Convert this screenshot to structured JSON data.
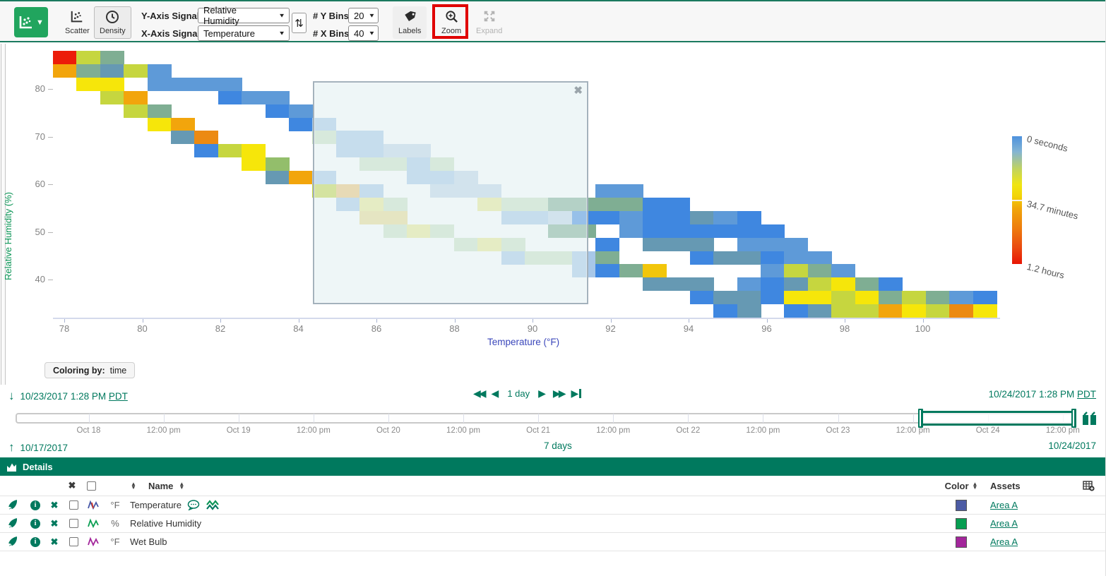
{
  "toolbar": {
    "scatter_label": "Scatter",
    "density_label": "Density",
    "y_axis_label": "Y-Axis Signal:",
    "y_axis_value": "Relative Humidity",
    "x_axis_label": "X-Axis Signal:",
    "x_axis_value": "Temperature",
    "y_bins_label": "# Y Bins:",
    "y_bins_value": "20",
    "x_bins_label": "# X Bins:",
    "x_bins_value": "40",
    "labels_label": "Labels",
    "zoom_label": "Zoom",
    "expand_label": "Expand",
    "highlight_color": "#e00000"
  },
  "chart": {
    "y_axis_title": "Relative Humidity (%)",
    "x_axis_title": "Temperature (°F)",
    "y_ticks": [
      "80",
      "70",
      "60",
      "50",
      "40"
    ],
    "x_ticks": [
      "78",
      "80",
      "82",
      "84",
      "86",
      "88",
      "90",
      "92",
      "94",
      "96",
      "98",
      "100"
    ],
    "legend": {
      "top": "0 seconds",
      "mid": "34.7 minutes",
      "bottom": "1.2 hours"
    },
    "coloring_chip": {
      "label": "Coloring by:",
      "value": "time"
    },
    "palette": {
      "red": "#ec1c09",
      "orange": "#f2a50c",
      "darkOrange": "#ec8a12",
      "gold": "#f2c60b",
      "yellow": "#f6e60a",
      "paleYellow": "#ecE98e",
      "yellowGreen": "#c6d63f",
      "green": "#93be6b",
      "sage": "#7fae93",
      "tealBlue": "#6699b3",
      "blue": "#3f87e0",
      "midBlue": "#5e9ad8",
      "lightBlue": "#a7c7e8",
      "paleBlue": "#c2d6e8",
      "paleGreen": "#cde2c4",
      "mutedOrange": "#f0c070",
      "mutedYellow": "#ecd98a"
    },
    "cells": [
      [
        0,
        0,
        "red"
      ],
      [
        1,
        0,
        "yellowGreen"
      ],
      [
        2,
        0,
        "sage"
      ],
      [
        0,
        1,
        "orange"
      ],
      [
        1,
        1,
        "sage"
      ],
      [
        2,
        1,
        "tealBlue"
      ],
      [
        3,
        1,
        "yellowGreen"
      ],
      [
        4,
        1,
        "midBlue"
      ],
      [
        1,
        2,
        "yellow"
      ],
      [
        2,
        2,
        "yellow"
      ],
      [
        4,
        2,
        "midBlue"
      ],
      [
        5,
        2,
        "midBlue"
      ],
      [
        6,
        2,
        "midBlue"
      ],
      [
        7,
        2,
        "midBlue"
      ],
      [
        2,
        3,
        "yellowGreen"
      ],
      [
        3,
        3,
        "orange"
      ],
      [
        7,
        3,
        "blue"
      ],
      [
        8,
        3,
        "midBlue"
      ],
      [
        9,
        3,
        "midBlue"
      ],
      [
        3,
        4,
        "yellowGreen"
      ],
      [
        4,
        4,
        "sage"
      ],
      [
        9,
        4,
        "blue"
      ],
      [
        10,
        4,
        "midBlue"
      ],
      [
        4,
        5,
        "yellow"
      ],
      [
        5,
        5,
        "orange"
      ],
      [
        10,
        5,
        "blue"
      ],
      [
        11,
        5,
        "lightBlue"
      ],
      [
        5,
        6,
        "tealBlue"
      ],
      [
        6,
        6,
        "darkOrange"
      ],
      [
        11,
        6,
        "paleGreen"
      ],
      [
        12,
        6,
        "lightBlue"
      ],
      [
        13,
        6,
        "lightBlue"
      ],
      [
        6,
        7,
        "blue"
      ],
      [
        7,
        7,
        "yellowGreen"
      ],
      [
        8,
        7,
        "yellow"
      ],
      [
        12,
        7,
        "lightBlue"
      ],
      [
        13,
        7,
        "lightBlue"
      ],
      [
        14,
        7,
        "paleBlue"
      ],
      [
        15,
        7,
        "paleBlue"
      ],
      [
        8,
        8,
        "yellow"
      ],
      [
        9,
        8,
        "green"
      ],
      [
        13,
        8,
        "paleGreen"
      ],
      [
        14,
        8,
        "paleGreen"
      ],
      [
        15,
        8,
        "lightBlue"
      ],
      [
        16,
        8,
        "paleGreen"
      ],
      [
        9,
        9,
        "tealBlue"
      ],
      [
        10,
        9,
        "orange"
      ],
      [
        11,
        9,
        "lightBlue"
      ],
      [
        15,
        9,
        "lightBlue"
      ],
      [
        16,
        9,
        "lightBlue"
      ],
      [
        17,
        9,
        "paleBlue"
      ],
      [
        11,
        10,
        "yellowGreen"
      ],
      [
        12,
        10,
        "mutedOrange"
      ],
      [
        13,
        10,
        "lightBlue"
      ],
      [
        16,
        10,
        "paleBlue"
      ],
      [
        17,
        10,
        "paleBlue"
      ],
      [
        18,
        10,
        "paleBlue"
      ],
      [
        23,
        10,
        "midBlue"
      ],
      [
        24,
        10,
        "midBlue"
      ],
      [
        12,
        11,
        "lightBlue"
      ],
      [
        13,
        11,
        "paleYellow"
      ],
      [
        14,
        11,
        "paleGreen"
      ],
      [
        18,
        11,
        "paleYellow"
      ],
      [
        19,
        11,
        "paleGreen"
      ],
      [
        20,
        11,
        "paleGreen"
      ],
      [
        21,
        11,
        "sage"
      ],
      [
        22,
        11,
        "sage"
      ],
      [
        23,
        11,
        "sage"
      ],
      [
        24,
        11,
        "sage"
      ],
      [
        25,
        11,
        "blue"
      ],
      [
        26,
        11,
        "blue"
      ],
      [
        13,
        12,
        "mutedYellow"
      ],
      [
        14,
        12,
        "mutedYellow"
      ],
      [
        19,
        12,
        "lightBlue"
      ],
      [
        20,
        12,
        "lightBlue"
      ],
      [
        21,
        12,
        "paleBlue"
      ],
      [
        22,
        12,
        "blue"
      ],
      [
        23,
        12,
        "blue"
      ],
      [
        24,
        12,
        "midBlue"
      ],
      [
        25,
        12,
        "blue"
      ],
      [
        26,
        12,
        "blue"
      ],
      [
        27,
        12,
        "tealBlue"
      ],
      [
        28,
        12,
        "midBlue"
      ],
      [
        29,
        12,
        "blue"
      ],
      [
        14,
        13,
        "paleGreen"
      ],
      [
        15,
        13,
        "paleYellow"
      ],
      [
        16,
        13,
        "paleGreen"
      ],
      [
        21,
        13,
        "sage"
      ],
      [
        22,
        13,
        "sage"
      ],
      [
        24,
        13,
        "midBlue"
      ],
      [
        25,
        13,
        "blue"
      ],
      [
        26,
        13,
        "blue"
      ],
      [
        27,
        13,
        "blue"
      ],
      [
        28,
        13,
        "blue"
      ],
      [
        29,
        13,
        "blue"
      ],
      [
        30,
        13,
        "blue"
      ],
      [
        17,
        14,
        "paleGreen"
      ],
      [
        18,
        14,
        "paleYellow"
      ],
      [
        19,
        14,
        "paleGreen"
      ],
      [
        23,
        14,
        "blue"
      ],
      [
        25,
        14,
        "tealBlue"
      ],
      [
        26,
        14,
        "tealBlue"
      ],
      [
        27,
        14,
        "tealBlue"
      ],
      [
        29,
        14,
        "midBlue"
      ],
      [
        30,
        14,
        "midBlue"
      ],
      [
        31,
        14,
        "midBlue"
      ],
      [
        19,
        15,
        "lightBlue"
      ],
      [
        20,
        15,
        "paleGreen"
      ],
      [
        21,
        15,
        "paleGreen"
      ],
      [
        22,
        15,
        "lightBlue"
      ],
      [
        23,
        15,
        "sage"
      ],
      [
        27,
        15,
        "blue"
      ],
      [
        28,
        15,
        "tealBlue"
      ],
      [
        29,
        15,
        "tealBlue"
      ],
      [
        30,
        15,
        "blue"
      ],
      [
        31,
        15,
        "midBlue"
      ],
      [
        32,
        15,
        "midBlue"
      ],
      [
        22,
        16,
        "lightBlue"
      ],
      [
        23,
        16,
        "blue"
      ],
      [
        24,
        16,
        "sage"
      ],
      [
        25,
        16,
        "gold"
      ],
      [
        30,
        16,
        "midBlue"
      ],
      [
        31,
        16,
        "yellowGreen"
      ],
      [
        32,
        16,
        "sage"
      ],
      [
        33,
        16,
        "midBlue"
      ],
      [
        25,
        17,
        "tealBlue"
      ],
      [
        26,
        17,
        "tealBlue"
      ],
      [
        27,
        17,
        "tealBlue"
      ],
      [
        29,
        17,
        "midBlue"
      ],
      [
        30,
        17,
        "blue"
      ],
      [
        31,
        17,
        "tealBlue"
      ],
      [
        32,
        17,
        "yellowGreen"
      ],
      [
        33,
        17,
        "yellow"
      ],
      [
        34,
        17,
        "sage"
      ],
      [
        35,
        17,
        "blue"
      ],
      [
        27,
        18,
        "blue"
      ],
      [
        28,
        18,
        "tealBlue"
      ],
      [
        29,
        18,
        "tealBlue"
      ],
      [
        30,
        18,
        "blue"
      ],
      [
        31,
        18,
        "yellow"
      ],
      [
        32,
        18,
        "yellow"
      ],
      [
        33,
        18,
        "yellowGreen"
      ],
      [
        34,
        18,
        "yellow"
      ],
      [
        35,
        18,
        "sage"
      ],
      [
        36,
        18,
        "yellowGreen"
      ],
      [
        37,
        18,
        "sage"
      ],
      [
        38,
        18,
        "midBlue"
      ],
      [
        39,
        18,
        "blue"
      ],
      [
        28,
        19,
        "blue"
      ],
      [
        29,
        19,
        "tealBlue"
      ],
      [
        31,
        19,
        "blue"
      ],
      [
        32,
        19,
        "tealBlue"
      ],
      [
        33,
        19,
        "yellowGreen"
      ],
      [
        34,
        19,
        "yellowGreen"
      ],
      [
        35,
        19,
        "orange"
      ],
      [
        36,
        19,
        "yellow"
      ],
      [
        37,
        19,
        "yellowGreen"
      ],
      [
        38,
        19,
        "darkOrange"
      ],
      [
        39,
        19,
        "yellow"
      ]
    ]
  },
  "daterange": {
    "start": "10/23/2017 1:28 PM",
    "start_tz": "PDT",
    "end": "10/24/2017 1:28 PM",
    "end_tz": "PDT",
    "step_label": "1 day"
  },
  "timeline": {
    "tick_labels": [
      "Oct 18",
      "12:00 pm",
      "Oct 19",
      "12:00 pm",
      "Oct 20",
      "12:00 pm",
      "Oct 21",
      "12:00 pm",
      "Oct 22",
      "12:00 pm",
      "Oct 23",
      "12:00 pm",
      "Oct 24",
      "12:00 pm"
    ],
    "start_date": "10/17/2017",
    "duration": "7 days",
    "end_date": "10/24/2017"
  },
  "details": {
    "title": "Details",
    "header": {
      "name": "Name",
      "color": "Color",
      "assets": "Assets"
    },
    "rows": [
      {
        "unit": "°F",
        "name": "Temperature",
        "signal_color": "#4456a6",
        "swatch": "#4c5ba4",
        "asset": "Area A",
        "extras": true
      },
      {
        "unit": "%",
        "name": "Relative Humidity",
        "signal_color": "#0a9e52",
        "swatch": "#079e51",
        "asset": "Area A",
        "extras": false
      },
      {
        "unit": "°F",
        "name": "Wet Bulb",
        "signal_color": "#a3269b",
        "swatch": "#a3269b",
        "asset": "Area A",
        "extras": false
      }
    ]
  }
}
